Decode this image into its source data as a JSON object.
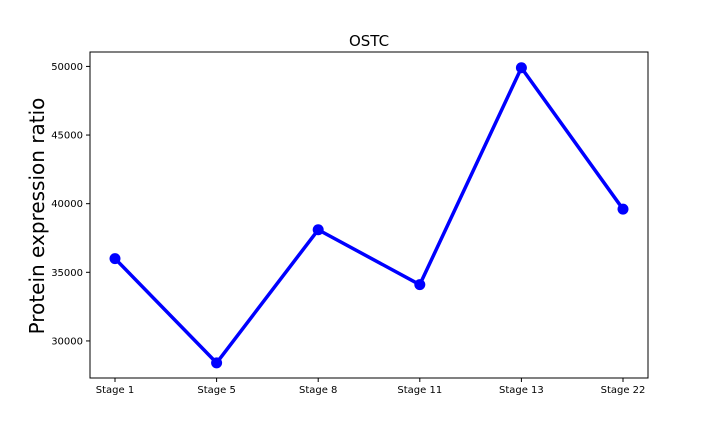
{
  "chart_data": {
    "type": "line",
    "title": "OSTC",
    "xlabel": "",
    "ylabel": "Protein expression ratio",
    "categories": [
      "Stage 1",
      "Stage 5",
      "Stage 8",
      "Stage 11",
      "Stage 13",
      "Stage 22"
    ],
    "series": [
      {
        "values": [
          36000,
          28400,
          38100,
          34100,
          49900,
          39600
        ],
        "color": "#0000ff"
      }
    ],
    "ylim": [
      27300,
      51050
    ],
    "yticks": [
      30000,
      35000,
      40000,
      45000,
      50000
    ],
    "grid": false,
    "legend": false
  }
}
